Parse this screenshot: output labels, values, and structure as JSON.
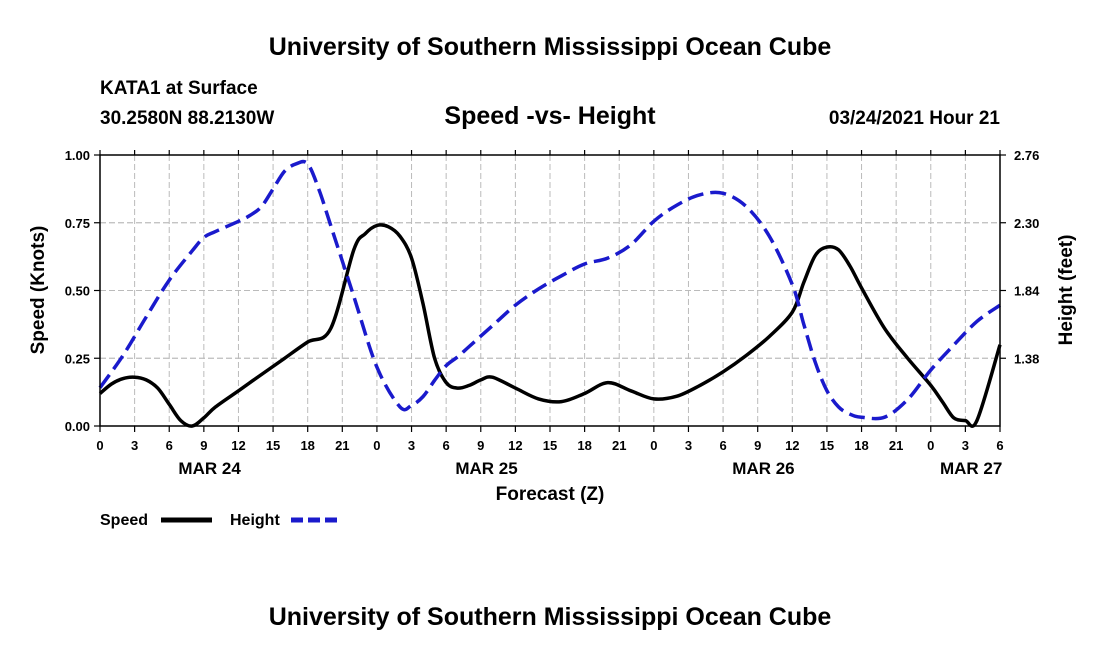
{
  "header": {
    "title_top": "University of Southern Mississippi Ocean Cube",
    "title_bottom": "University of Southern Mississippi Ocean Cube",
    "station": "KATA1 at Surface",
    "coords": "30.2580N 88.2130W",
    "run": "03/24/2021 Hour 21"
  },
  "colors": {
    "speed": "#000000",
    "height": "#1a1acc",
    "grid": "#bbbbbb"
  },
  "chart_data": {
    "type": "line",
    "title": "Speed -vs- Height",
    "xlabel": "Forecast (Z)",
    "ylabel_left": "Speed (Knots)",
    "ylabel_right": "Height (feet)",
    "xlim": [
      0,
      78
    ],
    "ylim_left": [
      0,
      1
    ],
    "ylim_right": [
      0.92,
      2.76
    ],
    "grid": true,
    "left_ticks": [
      "0.00",
      "0.25",
      "0.50",
      "0.75",
      "1.00"
    ],
    "right_ticks": [
      "1.38",
      "1.84",
      "2.30",
      "2.76"
    ],
    "x_tick_labels": [
      "0",
      "3",
      "6",
      "9",
      "12",
      "15",
      "18",
      "21",
      "0",
      "3",
      "6",
      "9",
      "12",
      "15",
      "18",
      "21",
      "0",
      "3",
      "6",
      "9",
      "12",
      "15",
      "18",
      "21",
      "0",
      "3",
      "6"
    ],
    "date_labels": [
      {
        "label": "MAR 24",
        "hour": 9.5
      },
      {
        "label": "MAR 25",
        "hour": 33.5
      },
      {
        "label": "MAR 26",
        "hour": 57.5
      },
      {
        "label": "MAR 27",
        "hour": 75.5
      }
    ],
    "series": [
      {
        "name": "Speed",
        "axis": "left",
        "style": "solid",
        "x": [
          0,
          1,
          2,
          3,
          4,
          5,
          6,
          7,
          8,
          9,
          10,
          12,
          14,
          16,
          18,
          20,
          22,
          23,
          24,
          25,
          26,
          27,
          28,
          29,
          30,
          31,
          32,
          33,
          34,
          36,
          38,
          40,
          42,
          44,
          46,
          48,
          50,
          52,
          54,
          56,
          58,
          60,
          61,
          62,
          63,
          64,
          65,
          66,
          68,
          70,
          72,
          73,
          74,
          75,
          76,
          78
        ],
        "values": [
          0.12,
          0.155,
          0.175,
          0.18,
          0.17,
          0.14,
          0.08,
          0.02,
          0.0,
          0.03,
          0.07,
          0.13,
          0.19,
          0.25,
          0.31,
          0.36,
          0.65,
          0.71,
          0.74,
          0.735,
          0.7,
          0.62,
          0.45,
          0.25,
          0.16,
          0.14,
          0.15,
          0.17,
          0.18,
          0.14,
          0.1,
          0.09,
          0.12,
          0.16,
          0.13,
          0.1,
          0.11,
          0.15,
          0.2,
          0.26,
          0.33,
          0.42,
          0.53,
          0.63,
          0.66,
          0.65,
          0.59,
          0.51,
          0.36,
          0.25,
          0.15,
          0.09,
          0.03,
          0.02,
          0.02,
          0.3
        ]
      },
      {
        "name": "Height",
        "axis": "right",
        "style": "dashed",
        "x": [
          0,
          2,
          4,
          6,
          8,
          9,
          10,
          12,
          13,
          14,
          15,
          16,
          17,
          18,
          19,
          20,
          22,
          24,
          26,
          27,
          28,
          29,
          30,
          31,
          32,
          34,
          36,
          38,
          40,
          42,
          44,
          46,
          48,
          50,
          52,
          54,
          56,
          58,
          60,
          61,
          62,
          63,
          64,
          65,
          66,
          68,
          70,
          72,
          74,
          76,
          78
        ],
        "values": [
          1.18,
          1.4,
          1.66,
          1.91,
          2.11,
          2.2,
          2.24,
          2.31,
          2.35,
          2.41,
          2.53,
          2.65,
          2.7,
          2.7,
          2.52,
          2.28,
          1.8,
          1.32,
          1.05,
          1.06,
          1.12,
          1.23,
          1.33,
          1.39,
          1.46,
          1.6,
          1.74,
          1.85,
          1.94,
          2.02,
          2.06,
          2.15,
          2.31,
          2.42,
          2.49,
          2.5,
          2.41,
          2.21,
          1.88,
          1.61,
          1.35,
          1.16,
          1.05,
          1.0,
          0.98,
          0.98,
          1.1,
          1.3,
          1.47,
          1.63,
          1.74
        ]
      }
    ]
  },
  "legend": {
    "speed_label": "Speed",
    "height_label": "Height"
  }
}
